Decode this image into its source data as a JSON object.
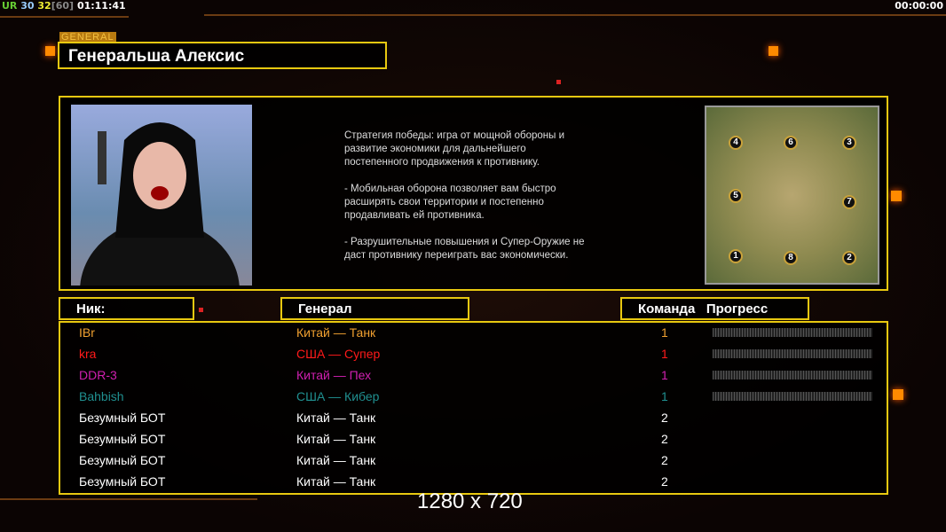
{
  "hud": {
    "ur": "UR",
    "fps": "30",
    "fps2": "32",
    "cap": "[60]",
    "time": "01:11:41",
    "clock": "00:00:00"
  },
  "general_tag": "GENERAL",
  "general_name": "Генеральша Алексис",
  "description": "Стратегия победы: игра от мощной обороны и\n развитие экономики для дальнейшего\n постепенного продвижения к противнику.\n\n- Мобильная оборона позволяет вам быстро\n расширять свои территории и постепенно\n продавливать ей противника.\n\n- Разрушительные повышения и Супер-Оружие не\n даст противнику переиграть вас экономически.",
  "map_slots": [
    "4",
    "6",
    "3",
    "5",
    "7",
    "1",
    "8",
    "2"
  ],
  "headers": {
    "nick": "Ник:",
    "general": "Генерал",
    "team": "Команда",
    "progress": "Прогресс"
  },
  "players": [
    {
      "nick": "IBr",
      "general": "Китай — Танк",
      "team": "1",
      "color": "#f0a030",
      "progress": 0
    },
    {
      "nick": "kra",
      "general": "США — Супер",
      "team": "1",
      "color": "#ff1a1a",
      "progress": 0
    },
    {
      "nick": "DDR-3",
      "general": "Китай — Пех",
      "team": "1",
      "color": "#d020b0",
      "progress": 0
    },
    {
      "nick": "Bahbish",
      "general": "США — Кибер",
      "team": "1",
      "color": "#209090",
      "progress": 0
    },
    {
      "nick": "Безумный БОТ",
      "general": "Китай — Танк",
      "team": "2",
      "color": "#ffffff"
    },
    {
      "nick": "Безумный БОТ",
      "general": "Китай — Танк",
      "team": "2",
      "color": "#ffffff"
    },
    {
      "nick": "Безумный БОТ",
      "general": "Китай — Танк",
      "team": "2",
      "color": "#ffffff"
    },
    {
      "nick": "Безумный БОТ",
      "general": "Китай — Танк",
      "team": "2",
      "color": "#ffffff"
    }
  ],
  "resolution": "1280 x 720"
}
